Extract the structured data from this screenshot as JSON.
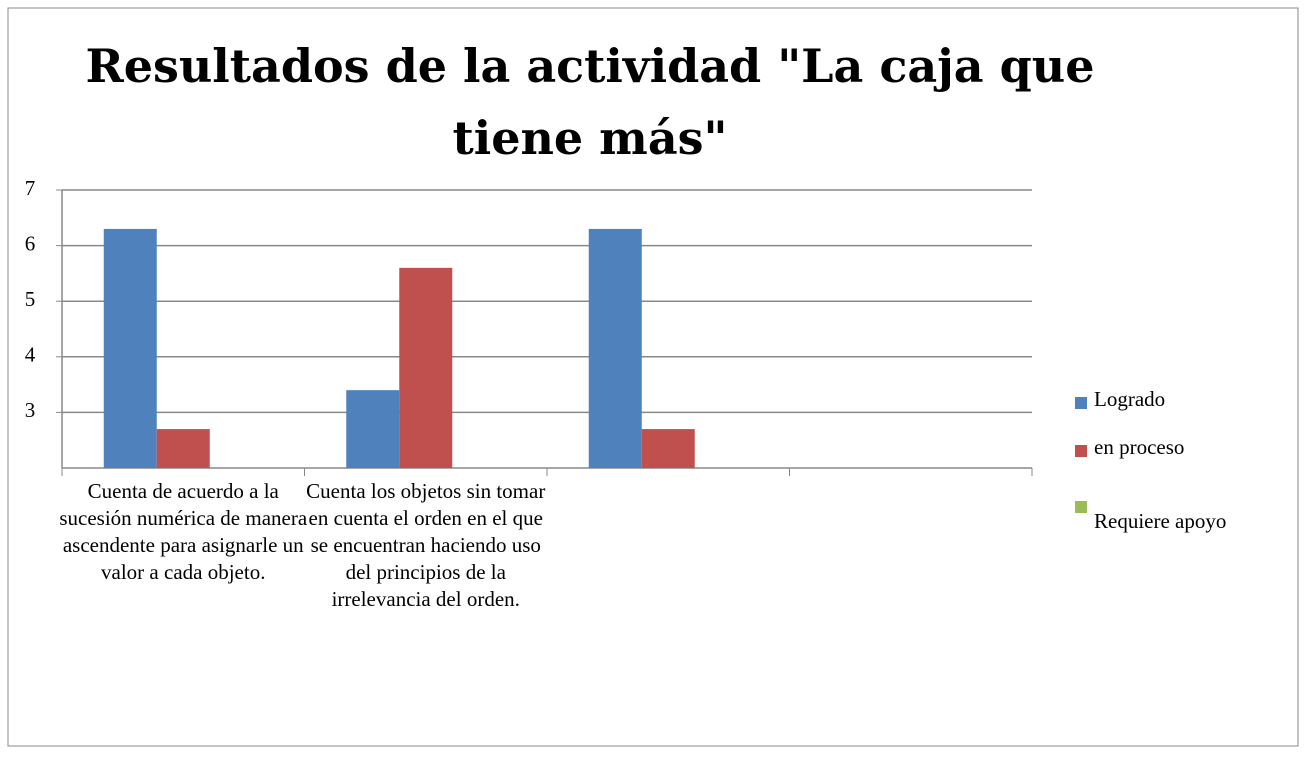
{
  "chart_data": {
    "type": "bar",
    "title": "Resultados de la actividad \"La caja que tiene más\"",
    "categories": [
      "Cuenta de acuerdo a la sucesión numérica de manera ascendente para asignarle un valor a cada objeto.",
      "Cuenta los objetos sin tomar en cuenta el orden en el que se encuentran haciendo uso del principios de la irrelevancia del orden.",
      null,
      null
    ],
    "series": [
      {
        "name": "Logrado",
        "color": "#4f81bd",
        "values": [
          6.3,
          3.4,
          6.3,
          null
        ]
      },
      {
        "name": "en proceso",
        "color": "#c0504d",
        "values": [
          2.7,
          5.6,
          2.7,
          null
        ]
      },
      {
        "name": "Requiere apoyo",
        "color": "#9bbb59",
        "values": [
          null,
          null,
          null,
          null
        ]
      }
    ],
    "ylim": [
      2,
      7
    ],
    "yticks": [
      3,
      4,
      5,
      6,
      7
    ],
    "grid": true,
    "legend": "right"
  }
}
